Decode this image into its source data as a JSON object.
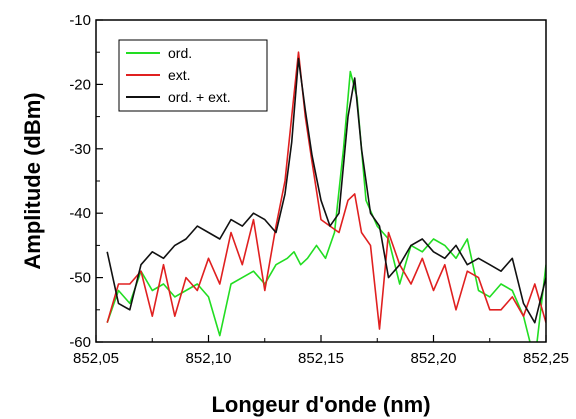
{
  "chart_data": {
    "type": "line",
    "xlabel": "Longeur d'onde (nm)",
    "ylabel": "Amplitude (dBm)",
    "xlim": [
      852.05,
      852.25
    ],
    "ylim": [
      -60,
      -10
    ],
    "x_ticks": [
      "852,05",
      "852,10",
      "852,15",
      "852,20",
      "852,25"
    ],
    "y_ticks": [
      "-60",
      "-50",
      "-40",
      "-30",
      "-20",
      "-10"
    ],
    "legend_position": "top-left",
    "series": [
      {
        "name": "ord.",
        "color": "#22dd22",
        "x": [
          852.055,
          852.06,
          852.065,
          852.07,
          852.075,
          852.08,
          852.085,
          852.09,
          852.095,
          852.1,
          852.105,
          852.11,
          852.115,
          852.12,
          852.125,
          852.13,
          852.135,
          852.138,
          852.141,
          852.144,
          852.148,
          852.152,
          852.156,
          852.16,
          852.163,
          852.166,
          852.17,
          852.175,
          852.18,
          852.185,
          852.19,
          852.195,
          852.2,
          852.205,
          852.21,
          852.215,
          852.22,
          852.225,
          852.23,
          852.235,
          852.24,
          852.245,
          852.25
        ],
        "y": [
          -57,
          -52,
          -54,
          -49,
          -52,
          -51,
          -53,
          -52,
          -51,
          -53,
          -59,
          -51,
          -50,
          -49,
          -51,
          -48,
          -47,
          -46,
          -48,
          -47,
          -45,
          -47,
          -43,
          -30,
          -18,
          -22,
          -38,
          -42,
          -44,
          -51,
          -45,
          -46,
          -44,
          -45,
          -47,
          -44,
          -52,
          -53,
          -51,
          -52,
          -56,
          -63,
          -48
        ]
      },
      {
        "name": "ext.",
        "color": "#e02020",
        "x": [
          852.055,
          852.06,
          852.065,
          852.07,
          852.075,
          852.08,
          852.085,
          852.09,
          852.095,
          852.1,
          852.105,
          852.11,
          852.115,
          852.12,
          852.125,
          852.13,
          852.134,
          852.137,
          852.14,
          852.143,
          852.146,
          852.15,
          852.154,
          852.158,
          852.162,
          852.165,
          852.168,
          852.172,
          852.176,
          852.18,
          852.185,
          852.19,
          852.195,
          852.2,
          852.205,
          852.21,
          852.215,
          852.22,
          852.225,
          852.23,
          852.235,
          852.24,
          852.245,
          852.25
        ],
        "y": [
          -57,
          -51,
          -51,
          -49,
          -56,
          -48,
          -56,
          -50,
          -52,
          -47,
          -51,
          -43,
          -48,
          -41,
          -52,
          -42,
          -35,
          -25,
          -15,
          -25,
          -32,
          -41,
          -42,
          -43,
          -38,
          -37,
          -43,
          -45,
          -58,
          -43,
          -48,
          -51,
          -47,
          -52,
          -48,
          -55,
          -49,
          -50,
          -55,
          -55,
          -53,
          -56,
          -51,
          -57
        ]
      },
      {
        "name": "ord. + ext.",
        "color": "#111111",
        "x": [
          852.055,
          852.06,
          852.065,
          852.07,
          852.075,
          852.08,
          852.085,
          852.09,
          852.095,
          852.1,
          852.105,
          852.11,
          852.115,
          852.12,
          852.125,
          852.13,
          852.134,
          852.137,
          852.14,
          852.143,
          852.146,
          852.15,
          852.154,
          852.158,
          852.162,
          852.165,
          852.168,
          852.172,
          852.176,
          852.18,
          852.185,
          852.19,
          852.195,
          852.2,
          852.205,
          852.21,
          852.215,
          852.22,
          852.225,
          852.23,
          852.235,
          852.24,
          852.245,
          852.25
        ],
        "y": [
          -46,
          -54,
          -55,
          -48,
          -46,
          -47,
          -45,
          -44,
          -42,
          -43,
          -44,
          -41,
          -42,
          -40,
          -41,
          -43,
          -37,
          -29,
          -16,
          -24,
          -31,
          -38,
          -42,
          -40,
          -25,
          -19,
          -30,
          -40,
          -42,
          -50,
          -48,
          -45,
          -44,
          -46,
          -47,
          -45,
          -48,
          -47,
          -48,
          -49,
          -47,
          -54,
          -57,
          -50
        ]
      }
    ]
  }
}
